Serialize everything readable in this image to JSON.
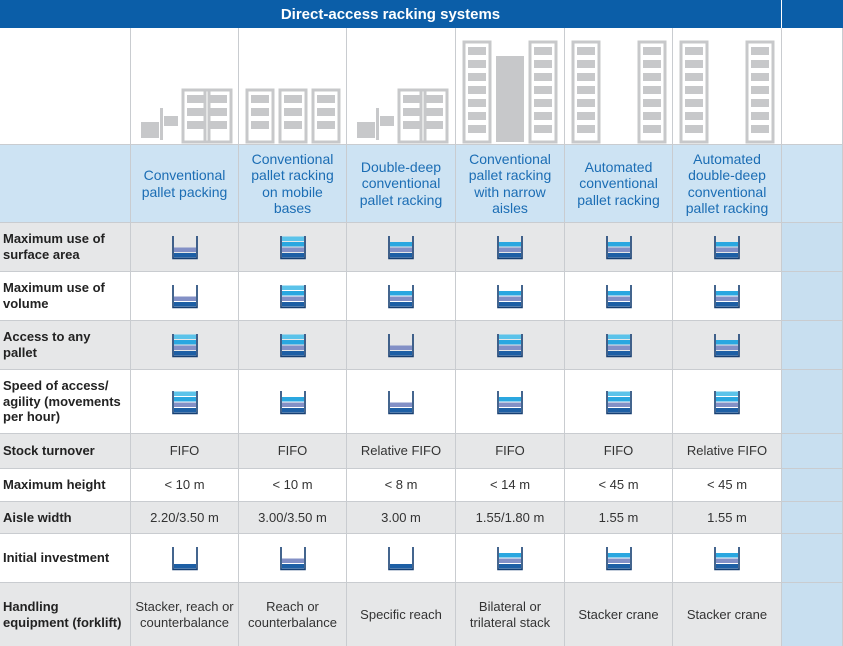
{
  "header": {
    "title": "Direct-access racking systems"
  },
  "columns": [
    "Conventional pallet packing",
    "Conventional pallet racking on mobile bases",
    "Double-deep conventional pallet racking",
    "Conventional pallet racking with narrow aisles",
    "Automated conventional pallet racking",
    "Automated double-deep conventional pallet racking"
  ],
  "rows": [
    {
      "label": "Maximum use of surface area",
      "ratings": [
        2,
        4,
        3,
        3,
        3,
        3
      ]
    },
    {
      "label": "Maximum use of volume",
      "ratings": [
        2,
        4,
        3,
        3,
        3,
        3
      ]
    },
    {
      "label": "Access to any pallet",
      "ratings": [
        4,
        4,
        2,
        4,
        4,
        3
      ]
    },
    {
      "label": "Speed of access/ agility (movements per hour)",
      "ratings": [
        4,
        3,
        2,
        3,
        4,
        4
      ]
    },
    {
      "label": "Stock turnover",
      "cells": [
        "FIFO",
        "FIFO",
        "Relative FIFO",
        "FIFO",
        "FIFO",
        "Relative FIFO"
      ]
    },
    {
      "label": "Maximum height",
      "cells": [
        "< 10 m",
        "< 10 m",
        "< 8 m",
        "< 14 m",
        "< 45 m",
        "< 45 m"
      ]
    },
    {
      "label": "Aisle width",
      "cells": [
        "2.20/3.50 m",
        "3.00/3.50 m",
        "3.00 m",
        "1.55/1.80 m",
        "1.55 m",
        "1.55 m"
      ]
    },
    {
      "label": "Initial investment",
      "ratings": [
        1,
        2,
        1,
        3,
        3,
        3
      ]
    },
    {
      "label": "Handling equipment (forklift)",
      "cells": [
        "Stacker, reach or counterbalance",
        "Reach or counterbalance",
        "Specific reach",
        "Bilateral or trilateral stack",
        "Stacker crane",
        "Stacker crane"
      ]
    }
  ]
}
